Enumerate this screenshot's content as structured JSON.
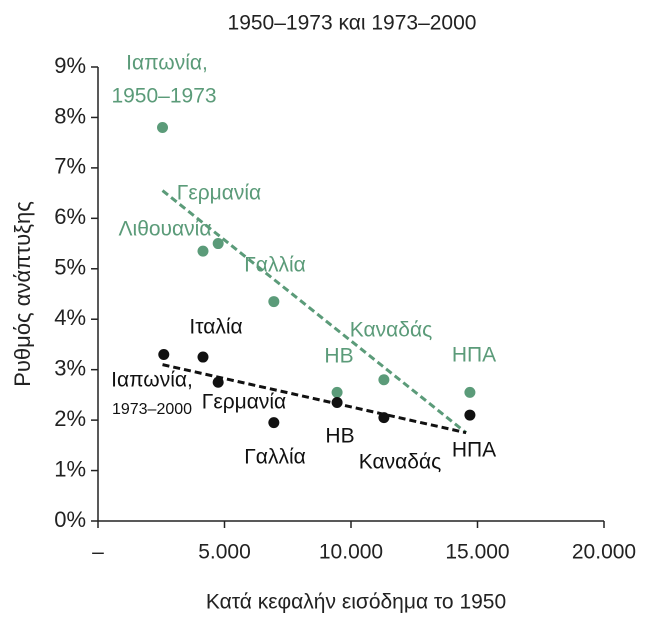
{
  "chart_data": {
    "type": "scatter",
    "title": "1950–1973 και 1973–2000",
    "xlabel": "Κατά κεφαλήν εισόδημα το 1950",
    "ylabel": "Ρυθμός ανάπτυξης",
    "xlim": [
      0,
      20000
    ],
    "ylim": [
      0,
      9
    ],
    "xticks": [
      {
        "value": 0,
        "label": "–"
      },
      {
        "value": 5000,
        "label": "5.000"
      },
      {
        "value": 10000,
        "label": "10.000"
      },
      {
        "value": 15000,
        "label": "15.000"
      },
      {
        "value": 20000,
        "label": "20.000"
      }
    ],
    "yticks": [
      {
        "value": 0,
        "label": "0%"
      },
      {
        "value": 1,
        "label": "1%"
      },
      {
        "value": 2,
        "label": "2%"
      },
      {
        "value": 3,
        "label": "3%"
      },
      {
        "value": 4,
        "label": "4%"
      },
      {
        "value": 5,
        "label": "5%"
      },
      {
        "value": 6,
        "label": "6%"
      },
      {
        "value": 7,
        "label": "7%"
      },
      {
        "value": 8,
        "label": "8%"
      },
      {
        "value": 9,
        "label": "9%"
      }
    ],
    "series": [
      {
        "color": "#5b9b79",
        "x": [
          2550,
          4150,
          4750,
          6950,
          9450,
          11300,
          14700
        ],
        "values": [
          7.8,
          5.35,
          5.5,
          4.35,
          2.55,
          2.8,
          2.55
        ],
        "labels": [
          [
            "Ιαπωνία,",
            "1950–1973"
          ],
          "Λιθουανία",
          "Γερμανία",
          "Γαλλία",
          "ΗΒ",
          "Καναδάς",
          "ΗΠΑ"
        ],
        "trend": {
          "x": [
            2550,
            14550
          ],
          "values": [
            6.55,
            1.75
          ]
        }
      },
      {
        "color": "#111111",
        "x": [
          2600,
          4150,
          4750,
          6950,
          9450,
          11300,
          14700
        ],
        "values": [
          3.3,
          3.25,
          2.75,
          1.95,
          2.35,
          2.05,
          2.1
        ],
        "labels": [
          [
            "Ιαπωνία,",
            "1973–2000"
          ],
          "Ιταλία",
          "Γερμανία",
          "Γαλλία",
          "ΗΒ",
          "Καναδάς",
          "ΗΠΑ"
        ],
        "trend": {
          "x": [
            2550,
            14550
          ],
          "values": [
            3.1,
            1.75
          ]
        }
      }
    ]
  }
}
